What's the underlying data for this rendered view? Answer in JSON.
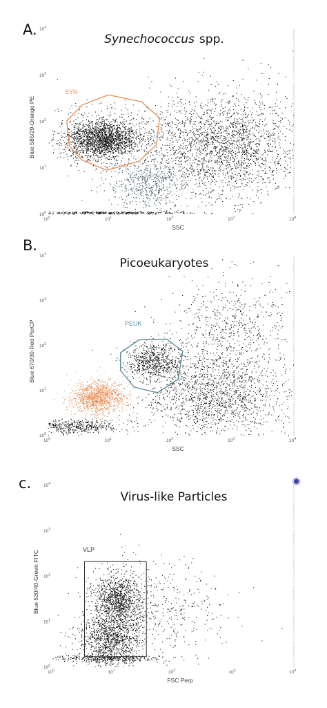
{
  "colors": {
    "events": "#111111",
    "syn": "#e8915a",
    "peuk": "#5e8c9c",
    "vlp": "#333333",
    "bright_bead": "#2a2aa8",
    "frame": "#9a9a9a"
  },
  "chart_data": [
    {
      "type": "scatter",
      "panel_letter": "A.",
      "title": "Synechococcus",
      "title_suffix": "spp.",
      "xlabel": "SSC",
      "ylabel": "Blue 585/29-Orange PE",
      "x_scale": "log",
      "y_scale": "log",
      "xlim": [
        1,
        10000
      ],
      "ylim": [
        1,
        10000
      ],
      "x_ticks": [
        {
          "value": 1,
          "base": "10",
          "exp": "0"
        },
        {
          "value": 10,
          "base": "10",
          "exp": "1"
        },
        {
          "value": 100,
          "base": "10",
          "exp": "2"
        },
        {
          "value": 1000,
          "base": "10",
          "exp": "3"
        },
        {
          "value": 10000,
          "base": "10",
          "exp": "4"
        }
      ],
      "y_ticks": [
        {
          "value": 1,
          "base": "10",
          "exp": "0"
        },
        {
          "value": 10,
          "base": "10",
          "exp": "1"
        },
        {
          "value": 100,
          "base": "10",
          "exp": "2"
        },
        {
          "value": 1000,
          "base": "10",
          "exp": "3"
        },
        {
          "value": 10000,
          "base": "10",
          "exp": "4"
        }
      ],
      "gate": {
        "label": "SYN",
        "shape": "polygon",
        "vertices": [
          [
            2.0,
            105
          ],
          [
            3.6,
            230
          ],
          [
            9.5,
            380
          ],
          [
            33,
            270
          ],
          [
            65,
            120
          ],
          [
            58,
            32
          ],
          [
            30,
            14
          ],
          [
            9,
            9
          ],
          [
            3.5,
            15
          ],
          [
            2.2,
            30
          ]
        ]
      },
      "populations": [
        {
          "name": "SYN cluster",
          "color": "#111111",
          "n": 1500,
          "cx": 7.5,
          "cy": 40,
          "sx": 0.26,
          "sy": 0.19
        },
        {
          "name": "SYN halo",
          "color": "#111111",
          "n": 700,
          "cx": 9,
          "cy": 45,
          "sx": 0.45,
          "sy": 0.32
        },
        {
          "name": "diffuse cloud",
          "color": "#111111",
          "n": 2300,
          "cx": 700,
          "cy": 30,
          "sx": 0.62,
          "sy": 0.55
        },
        {
          "name": "debris plume",
          "color": "#3f5560",
          "n": 650,
          "cx": 45,
          "cy": 4.5,
          "sx": 0.32,
          "sy": 0.26
        },
        {
          "name": "baseline",
          "color": "#111111",
          "n": 350,
          "cx": 12,
          "cy": 1.07,
          "sx": 0.65,
          "sy": 0.015
        }
      ]
    },
    {
      "type": "scatter",
      "panel_letter": "B.",
      "title": "Picoeukaryotes",
      "xlabel": "SSC",
      "ylabel": "Blue 670/30-Red PerCP",
      "x_scale": "log",
      "y_scale": "log",
      "xlim": [
        1,
        10000
      ],
      "ylim": [
        1,
        10000
      ],
      "x_ticks": [
        {
          "value": 1,
          "base": "10",
          "exp": "0"
        },
        {
          "value": 10,
          "base": "10",
          "exp": "1"
        },
        {
          "value": 100,
          "base": "10",
          "exp": "2"
        },
        {
          "value": 1000,
          "base": "10",
          "exp": "3"
        },
        {
          "value": 10000,
          "base": "10",
          "exp": "4"
        }
      ],
      "y_ticks": [
        {
          "value": 1,
          "base": "10",
          "exp": "0"
        },
        {
          "value": 10,
          "base": "10",
          "exp": "1"
        },
        {
          "value": 100,
          "base": "10",
          "exp": "2"
        },
        {
          "value": 1000,
          "base": "10",
          "exp": "3"
        },
        {
          "value": 10000,
          "base": "10",
          "exp": "4"
        }
      ],
      "gate": {
        "label": "PEUK",
        "shape": "polygon",
        "vertices": [
          [
            15,
            70
          ],
          [
            30,
            135
          ],
          [
            85,
            140
          ],
          [
            155,
            75
          ],
          [
            130,
            18
          ],
          [
            60,
            9
          ],
          [
            25,
            12
          ],
          [
            15,
            28
          ]
        ]
      },
      "populations": [
        {
          "name": "SYN (orange)",
          "color": "#e8915a",
          "n": 1200,
          "cx": 6.5,
          "cy": 7,
          "sx": 0.22,
          "sy": 0.18
        },
        {
          "name": "PEUK",
          "color": "#111111",
          "n": 650,
          "cx": 52,
          "cy": 45,
          "sx": 0.22,
          "sy": 0.2
        },
        {
          "name": "diffuse cloud",
          "color": "#111111",
          "n": 1700,
          "cx": 500,
          "cy": 8,
          "sx": 0.6,
          "sy": 0.5
        },
        {
          "name": "upper diffuse",
          "color": "#111111",
          "n": 600,
          "cx": 900,
          "cy": 250,
          "sx": 0.45,
          "sy": 0.55
        },
        {
          "name": "baseline",
          "color": "#111111",
          "n": 450,
          "cx": 3,
          "cy": 1.6,
          "sx": 0.35,
          "sy": 0.08
        }
      ]
    },
    {
      "type": "scatter",
      "panel_letter": "c.",
      "title": "Virus-like Particles",
      "xlabel": "FSC Perp",
      "ylabel": "Blue 530/40-Green FITC",
      "x_scale": "log",
      "y_scale": "log",
      "xlim": [
        1,
        10000
      ],
      "ylim": [
        1,
        10000
      ],
      "x_ticks": [
        {
          "value": 1,
          "base": "10",
          "exp": "0"
        },
        {
          "value": 10,
          "base": "10",
          "exp": "1"
        },
        {
          "value": 100,
          "base": "10",
          "exp": "2"
        },
        {
          "value": 1000,
          "base": "10",
          "exp": "3"
        },
        {
          "value": 10000,
          "base": "10",
          "exp": "4"
        }
      ],
      "y_ticks": [
        {
          "value": 1,
          "base": "10",
          "exp": "0"
        },
        {
          "value": 10,
          "base": "10",
          "exp": "1"
        },
        {
          "value": 100,
          "base": "10",
          "exp": "2"
        },
        {
          "value": 1000,
          "base": "10",
          "exp": "3"
        },
        {
          "value": 10000,
          "base": "10",
          "exp": "4"
        }
      ],
      "gate": {
        "label": "VLP",
        "shape": "rectangle",
        "vertices": [
          [
            3.4,
            1.7
          ],
          [
            36,
            1.7
          ],
          [
            36,
            210
          ],
          [
            3.4,
            210
          ]
        ]
      },
      "populations": [
        {
          "name": "VLP upper",
          "color": "#111111",
          "n": 1100,
          "cx": 12,
          "cy": 30,
          "sx": 0.2,
          "sy": 0.3
        },
        {
          "name": "VLP lower",
          "color": "#111111",
          "n": 1100,
          "cx": 9,
          "cy": 4,
          "sx": 0.26,
          "sy": 0.3
        },
        {
          "name": "background",
          "color": "#111111",
          "n": 450,
          "cx": 60,
          "cy": 20,
          "sx": 0.55,
          "sy": 0.55
        },
        {
          "name": "baseline",
          "color": "#111111",
          "n": 350,
          "cx": 8,
          "cy": 1.55,
          "sx": 0.5,
          "sy": 0.04
        }
      ],
      "bright_bead": {
        "x": 11000,
        "y": 11000,
        "color": "#2a2aa8"
      }
    }
  ]
}
